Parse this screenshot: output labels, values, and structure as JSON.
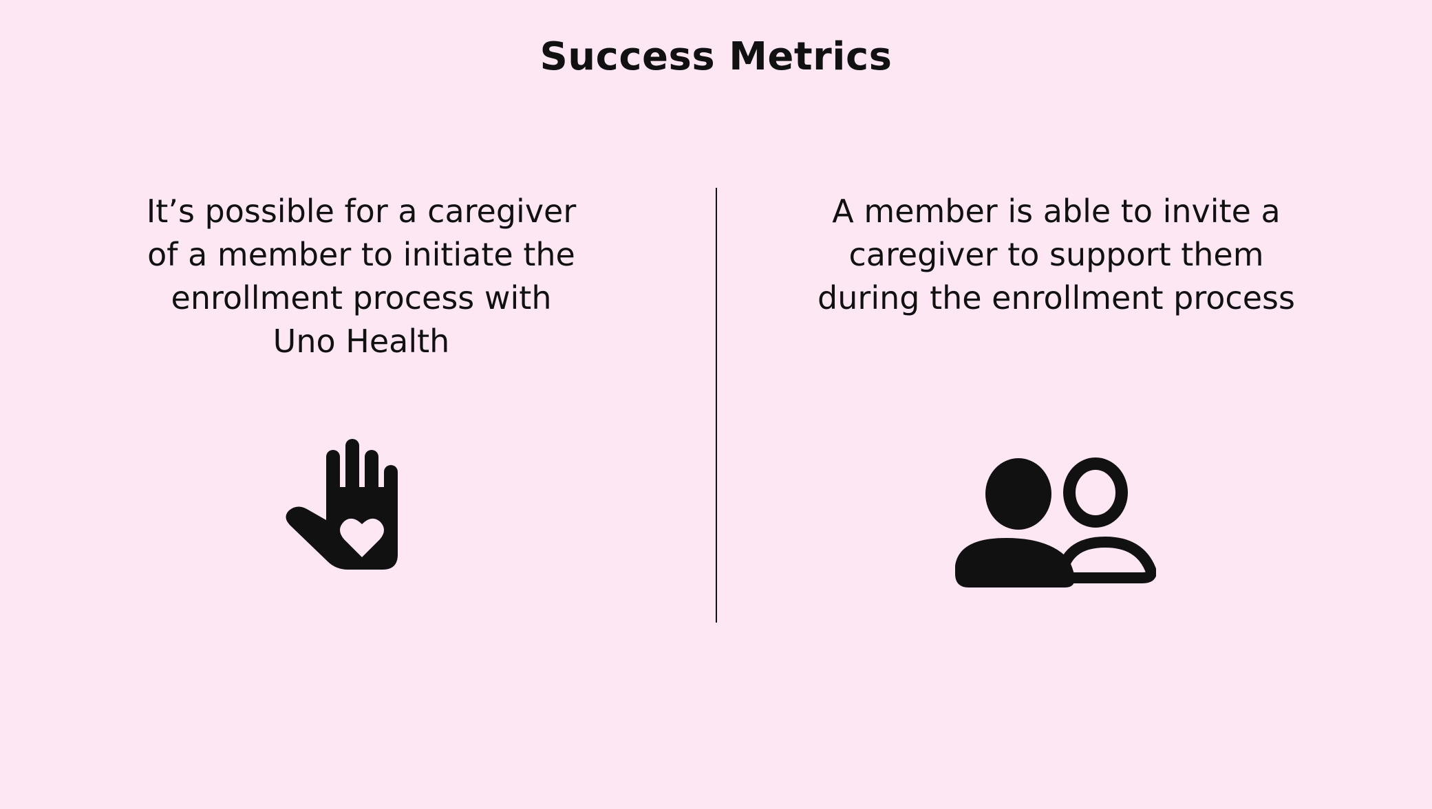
{
  "slide": {
    "title": "Success Metrics",
    "background_color": "#fde7f3",
    "text_color": "#111111"
  },
  "metrics": [
    {
      "text": "It’s possible for a caregiver of a member to initiate the enrollment process with Uno Health",
      "icon": "hand-heart-icon"
    },
    {
      "text": "A member is able to invite a caregiver to support them during the enrollment process",
      "icon": "people-icon"
    }
  ]
}
